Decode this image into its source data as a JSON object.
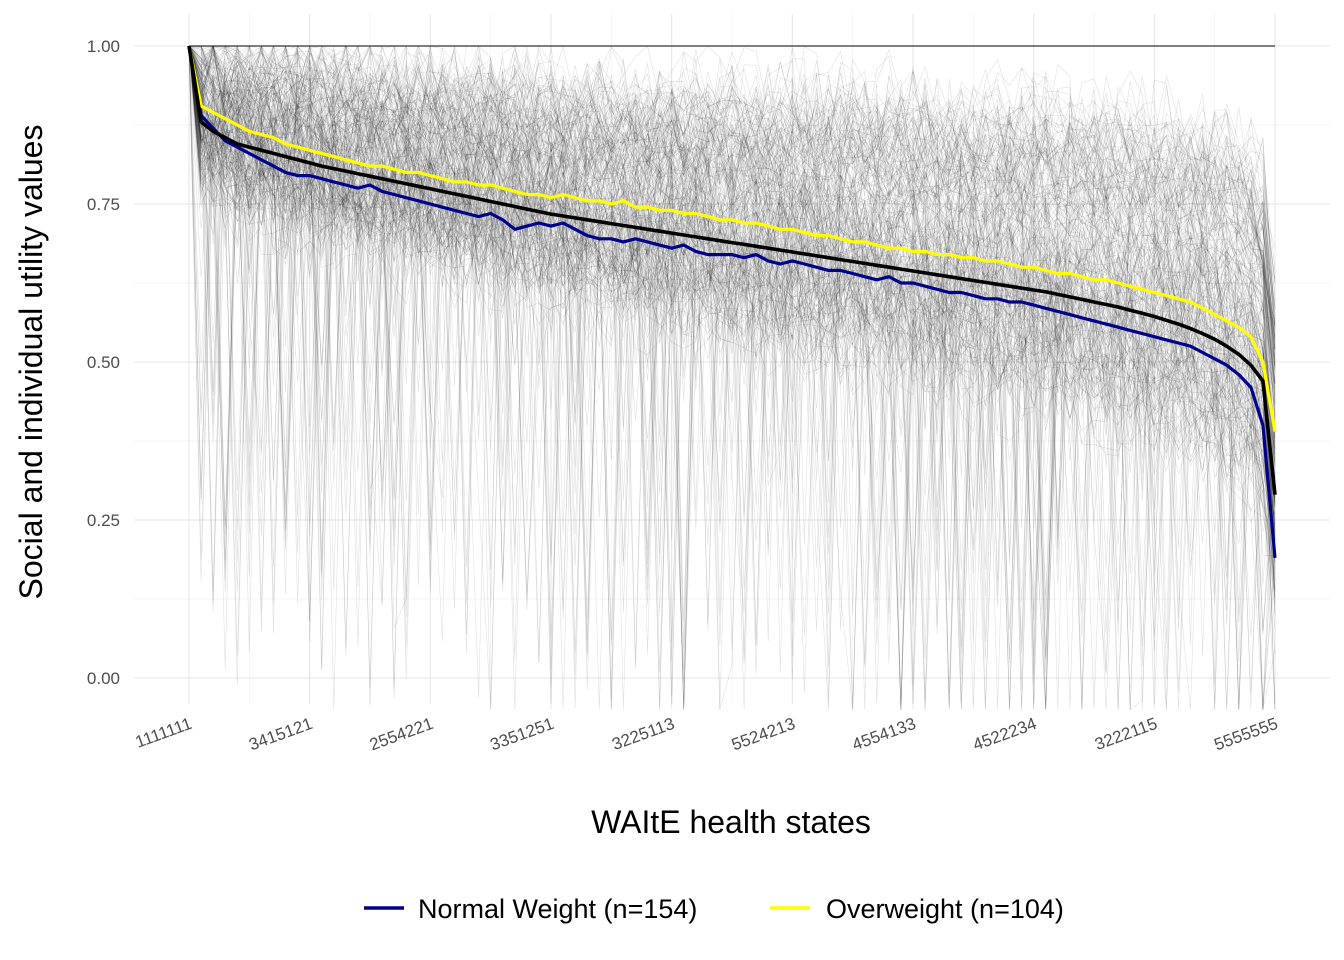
{
  "chart_data": {
    "type": "line",
    "title": "",
    "xlabel": "WAItE health states",
    "ylabel": "Social and individual utility values",
    "ylim": [
      0.0,
      1.0
    ],
    "y_ticks": [
      "0.00",
      "0.25",
      "0.50",
      "0.75",
      "1.00"
    ],
    "x_tick_labels": [
      "1111111",
      "3415121",
      "2554221",
      "3351251",
      "3225113",
      "5524213",
      "4554133",
      "4522234",
      "3222115",
      "5555555"
    ],
    "x_tick_positions": [
      1,
      11,
      21,
      31,
      41,
      51,
      61,
      71,
      81,
      91
    ],
    "n_states": 91,
    "grid": true,
    "legend_position": "bottom",
    "background_lines": "individual participant utility curves (thin grey)",
    "series": [
      {
        "name": "Normal Weight (n=154)",
        "color": "#00008B",
        "values": [
          1.0,
          0.89,
          0.87,
          0.85,
          0.84,
          0.83,
          0.82,
          0.81,
          0.8,
          0.795,
          0.795,
          0.79,
          0.785,
          0.78,
          0.775,
          0.78,
          0.77,
          0.765,
          0.76,
          0.755,
          0.75,
          0.745,
          0.74,
          0.735,
          0.73,
          0.735,
          0.725,
          0.71,
          0.715,
          0.72,
          0.715,
          0.72,
          0.71,
          0.7,
          0.695,
          0.695,
          0.69,
          0.695,
          0.69,
          0.685,
          0.68,
          0.685,
          0.675,
          0.67,
          0.67,
          0.67,
          0.665,
          0.67,
          0.66,
          0.655,
          0.66,
          0.655,
          0.65,
          0.645,
          0.645,
          0.64,
          0.635,
          0.63,
          0.635,
          0.625,
          0.625,
          0.62,
          0.615,
          0.61,
          0.61,
          0.605,
          0.6,
          0.6,
          0.595,
          0.595,
          0.59,
          0.585,
          0.58,
          0.575,
          0.57,
          0.565,
          0.56,
          0.555,
          0.55,
          0.545,
          0.54,
          0.535,
          0.53,
          0.525,
          0.515,
          0.505,
          0.495,
          0.48,
          0.46,
          0.4,
          0.19
        ]
      },
      {
        "name": "Overweight (n=104)",
        "color": "#FFFF00",
        "values": [
          1.0,
          0.905,
          0.895,
          0.885,
          0.875,
          0.865,
          0.86,
          0.855,
          0.845,
          0.84,
          0.835,
          0.83,
          0.825,
          0.82,
          0.815,
          0.81,
          0.81,
          0.805,
          0.8,
          0.8,
          0.795,
          0.79,
          0.785,
          0.785,
          0.78,
          0.78,
          0.775,
          0.77,
          0.765,
          0.765,
          0.76,
          0.765,
          0.76,
          0.755,
          0.755,
          0.75,
          0.755,
          0.745,
          0.745,
          0.74,
          0.74,
          0.735,
          0.735,
          0.73,
          0.725,
          0.725,
          0.72,
          0.72,
          0.715,
          0.71,
          0.71,
          0.705,
          0.7,
          0.7,
          0.695,
          0.69,
          0.69,
          0.685,
          0.68,
          0.68,
          0.675,
          0.675,
          0.67,
          0.67,
          0.665,
          0.665,
          0.66,
          0.66,
          0.655,
          0.65,
          0.65,
          0.645,
          0.64,
          0.64,
          0.635,
          0.63,
          0.63,
          0.625,
          0.62,
          0.615,
          0.61,
          0.605,
          0.6,
          0.595,
          0.585,
          0.575,
          0.565,
          0.555,
          0.54,
          0.5,
          0.39
        ]
      },
      {
        "name": "",
        "color": "#000000",
        "values": [
          1.0,
          0.88,
          0.865,
          0.855,
          0.845,
          0.84,
          0.835,
          0.83,
          0.825,
          0.82,
          0.815,
          0.81,
          0.806,
          0.802,
          0.798,
          0.794,
          0.79,
          0.786,
          0.782,
          0.778,
          0.774,
          0.77,
          0.766,
          0.762,
          0.758,
          0.754,
          0.75,
          0.746,
          0.742,
          0.738,
          0.734,
          0.731,
          0.728,
          0.725,
          0.722,
          0.719,
          0.716,
          0.713,
          0.71,
          0.707,
          0.704,
          0.701,
          0.698,
          0.695,
          0.692,
          0.689,
          0.686,
          0.683,
          0.68,
          0.677,
          0.674,
          0.671,
          0.668,
          0.665,
          0.662,
          0.659,
          0.656,
          0.653,
          0.65,
          0.647,
          0.644,
          0.641,
          0.638,
          0.635,
          0.632,
          0.629,
          0.626,
          0.623,
          0.62,
          0.617,
          0.614,
          0.611,
          0.607,
          0.603,
          0.599,
          0.595,
          0.591,
          0.587,
          0.582,
          0.577,
          0.572,
          0.566,
          0.56,
          0.553,
          0.545,
          0.536,
          0.525,
          0.512,
          0.495,
          0.47,
          0.29
        ]
      }
    ]
  }
}
